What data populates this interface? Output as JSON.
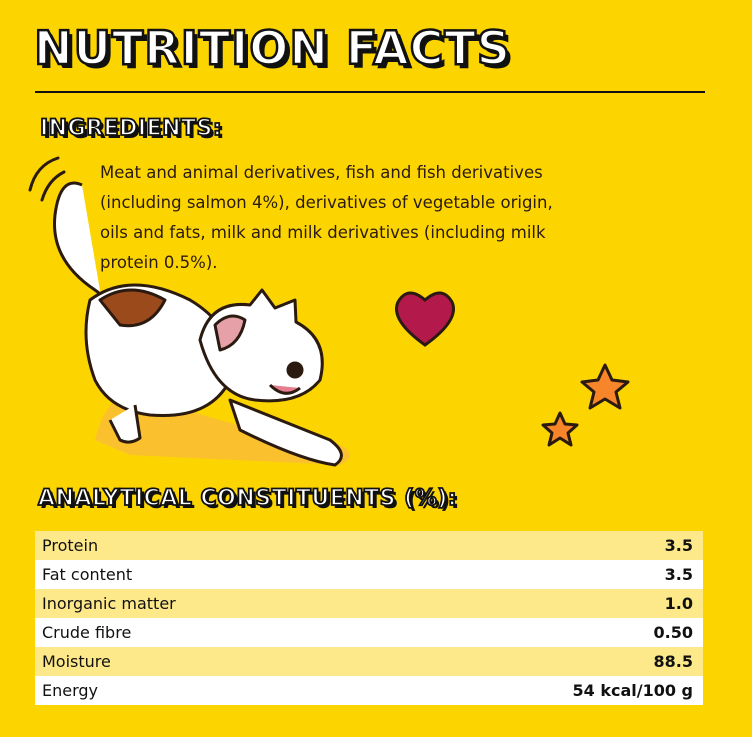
{
  "header": {
    "title": "NUTRITION FACTS"
  },
  "ingredients": {
    "heading": "INGREDIENTS:",
    "lines": [
      "Meat and animal derivatives, fish and fish derivatives",
      "(including salmon 4%), derivatives of vegetable origin,",
      "oils and fats, milk and milk derivatives (including milk",
      "protein 0.5%)."
    ]
  },
  "table": {
    "heading": "ANALYTICAL CONSTITUENTS (%):",
    "rows": [
      [
        "Protein",
        "3.5"
      ],
      [
        "Fat content",
        "3.5"
      ],
      [
        "Inorganic matter",
        "1.0"
      ],
      [
        "Crude fibre",
        "0.50"
      ],
      [
        "Moisture",
        "88.5"
      ],
      [
        "Energy",
        "54 kcal/100 g"
      ]
    ]
  }
}
